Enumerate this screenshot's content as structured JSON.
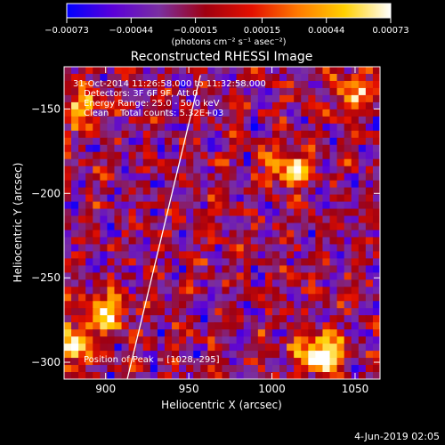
{
  "chart_data": {
    "type": "heatmap",
    "title": "Reconstructed RHESSI Image",
    "xlabel": "Heliocentric X (arcsec)",
    "ylabel": "Heliocentric Y (arcsec)",
    "xlim": [
      875,
      1065
    ],
    "ylim": [
      -310,
      -125
    ],
    "x_ticks": [
      900,
      950,
      1000,
      1050
    ],
    "x_tick_labels": [
      "900",
      "950",
      "1000",
      "1050"
    ],
    "y_ticks": [
      -150,
      -200,
      -250,
      -300
    ],
    "y_tick_labels": [
      "−150",
      "−200",
      "−250",
      "−300"
    ],
    "colorbar": {
      "range": [
        -0.00073,
        0.00073
      ],
      "ticks": [
        -0.00073,
        -0.00044,
        -0.00015,
        0.00015,
        0.00044,
        0.00073
      ],
      "tick_labels": [
        "−0.00073",
        "−0.00044",
        "−0.00015",
        "0.00015",
        "0.00044",
        "0.00073"
      ],
      "unit_label": "(photons cm⁻² s⁻¹ asec⁻²)",
      "colormap": [
        "#0000ff",
        "#5b00d8",
        "#7a2fa0",
        "#a00010",
        "#e41000",
        "#ff7a00",
        "#ffd000",
        "#ffffff"
      ]
    },
    "annotations": [
      "31-Oct-2014 11:26:58.000 to 11:32:58.000",
      "Detectors: 3F 6F 9F, Att 0",
      "Energy Range: 25.0 - 50.0 keV",
      "Clean    Total counts: 5.32E+03"
    ],
    "peak_label": "Position of Peak = [1028,-295]",
    "peak": [
      1028,
      -295
    ],
    "limb_line": {
      "x": [
        957,
        913
      ],
      "y": [
        -130,
        -310
      ]
    },
    "bright_sources": [
      {
        "x": 1028,
        "y": -295,
        "value": 0.00073
      },
      {
        "x": 880,
        "y": -290,
        "value": 0.0006
      },
      {
        "x": 900,
        "y": -270,
        "value": 0.0005
      },
      {
        "x": 1010,
        "y": -185,
        "value": 0.00045
      },
      {
        "x": 885,
        "y": -150,
        "value": 0.0004
      },
      {
        "x": 1050,
        "y": -140,
        "value": 0.00035
      }
    ],
    "footer": "4-Jun-2019 02:05"
  }
}
